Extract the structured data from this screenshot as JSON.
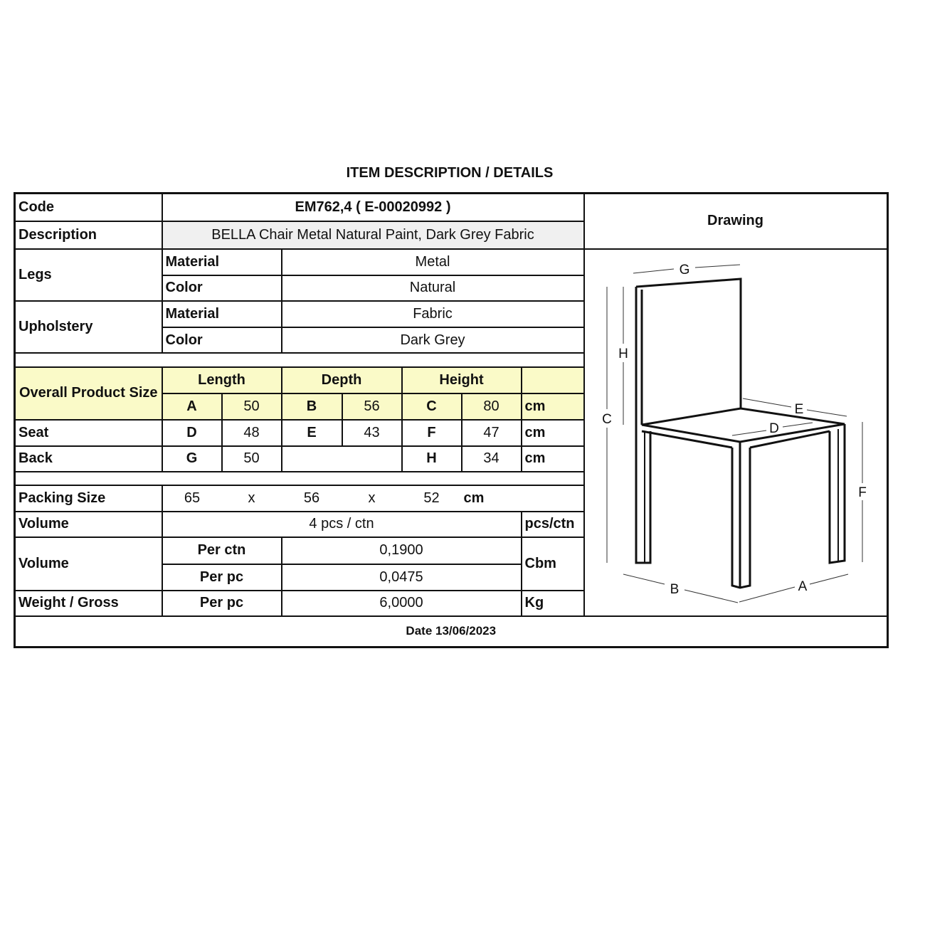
{
  "title": "ITEM DESCRIPTION / DETAILS",
  "code": {
    "label": "Code",
    "value": "EM762,4  ( E-00020992 )"
  },
  "description": {
    "label": "Description",
    "value": "BELLA Chair Metal Natural Paint, Dark Grey Fabric"
  },
  "drawing_label": "Drawing",
  "legs": {
    "label": "Legs",
    "material_label": "Material",
    "material": "Metal",
    "color_label": "Color",
    "color": "Natural"
  },
  "upholstery": {
    "label": "Upholstery",
    "material_label": "Material",
    "material": "Fabric",
    "color_label": "Color",
    "color": "Dark Grey"
  },
  "size": {
    "label": "Overall Product Size",
    "headers": [
      "Length",
      "Depth",
      "Height"
    ],
    "overall": [
      "A",
      "50",
      "B",
      "56",
      "C",
      "80",
      "cm"
    ],
    "seat": {
      "label": "Seat",
      "cells": [
        "D",
        "48",
        "E",
        "43",
        "F",
        "47",
        "cm"
      ]
    },
    "back": {
      "label": "Back",
      "cells": [
        "G",
        "50",
        "H",
        "34",
        "cm"
      ]
    }
  },
  "packing": {
    "label": "Packing Size",
    "cells": [
      "65",
      "x",
      "56",
      "x",
      "52",
      "cm"
    ]
  },
  "volume_pcs": {
    "label": "Volume",
    "value": "4 pcs / ctn",
    "unit": "pcs/ctn"
  },
  "volume": {
    "label": "Volume",
    "per_ctn_label": "Per ctn",
    "per_ctn": "0,1900",
    "per_pc_label": "Per pc",
    "per_pc": "0,0475",
    "unit": "Cbm"
  },
  "weight": {
    "label": "Weight / Gross",
    "per_pc_label": "Per pc",
    "value": "6,0000",
    "unit": "Kg"
  },
  "date": "Date 13/06/2023",
  "drawing_letters": {
    "A": "A",
    "B": "B",
    "C": "C",
    "D": "D",
    "E": "E",
    "F": "F",
    "G": "G",
    "H": "H"
  },
  "colors": {
    "size_header_bg": "#fafac8",
    "description_bg": "#f0f0f0"
  }
}
